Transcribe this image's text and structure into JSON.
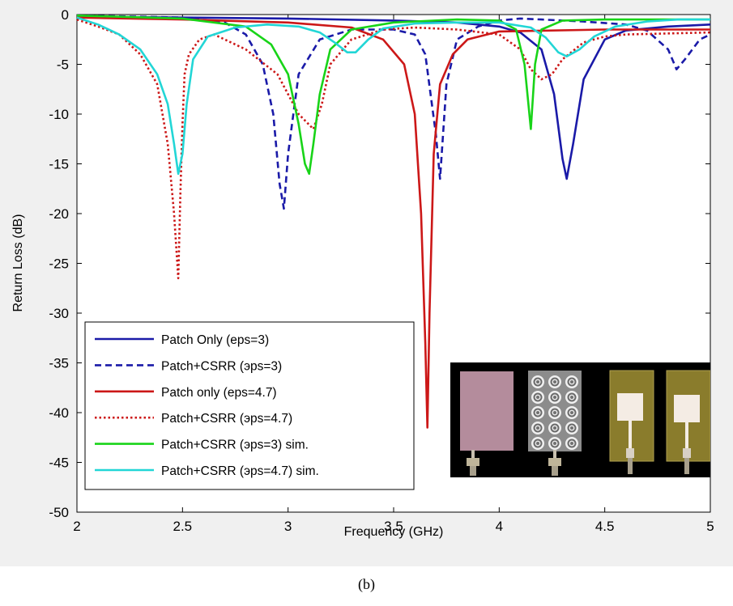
{
  "chart_data": {
    "type": "line",
    "title": "",
    "xlabel": "Frequency (GHz)",
    "ylabel": "Return Loss (dB)",
    "xlim": [
      2,
      5
    ],
    "ylim": [
      -50,
      0
    ],
    "xticks": [
      "2",
      "2.5",
      "3",
      "3.5",
      "4",
      "4.5",
      "5"
    ],
    "yticks": [
      "0",
      "-5",
      "-10",
      "-15",
      "-20",
      "-25",
      "-30",
      "-35",
      "-40",
      "-45",
      "-50"
    ],
    "grid": false,
    "legend_position": "bottom-left",
    "series": [
      {
        "name": "Patch Only (eps=3)",
        "color": "#1a1aa8",
        "style": "solid",
        "x": [
          2,
          2.5,
          3.0,
          3.5,
          3.8,
          4.0,
          4.1,
          4.2,
          4.26,
          4.3,
          4.32,
          4.35,
          4.4,
          4.5,
          4.6,
          4.8,
          5.0
        ],
        "y": [
          -0.2,
          -0.3,
          -0.4,
          -0.6,
          -0.8,
          -1.2,
          -1.8,
          -3.5,
          -8,
          -14.5,
          -16.5,
          -13,
          -6.5,
          -2.5,
          -1.6,
          -1.2,
          -1.0
        ]
      },
      {
        "name": "Patch+CSRR (eps=3)",
        "color": "#1a1aa8",
        "style": "dashed",
        "x": [
          2,
          2.5,
          2.7,
          2.8,
          2.88,
          2.93,
          2.96,
          2.98,
          3.0,
          3.05,
          3.15,
          3.3,
          3.5,
          3.6,
          3.65,
          3.7,
          3.72,
          3.75,
          3.8,
          3.9,
          4.0,
          4.1,
          4.2,
          4.4,
          4.6,
          4.7,
          4.8,
          4.84,
          4.88,
          4.95,
          5.0
        ],
        "y": [
          -0.1,
          -0.3,
          -0.8,
          -2,
          -5,
          -10,
          -17,
          -19.5,
          -14,
          -6,
          -2.5,
          -1.5,
          -1.5,
          -2,
          -4,
          -12,
          -16.5,
          -7,
          -2.5,
          -1.2,
          -0.6,
          -0.4,
          -0.5,
          -0.7,
          -1.0,
          -1.6,
          -3.5,
          -5.5,
          -4.5,
          -2.5,
          -2.0
        ]
      },
      {
        "name": "Patch only (eps=4.7)",
        "color": "#cc1818",
        "style": "solid",
        "x": [
          2,
          2.5,
          3.0,
          3.3,
          3.45,
          3.55,
          3.6,
          3.63,
          3.65,
          3.66,
          3.67,
          3.69,
          3.72,
          3.78,
          3.85,
          4.0,
          4.5,
          5.0
        ],
        "y": [
          -0.3,
          -0.5,
          -0.8,
          -1.3,
          -2.5,
          -5,
          -10,
          -20,
          -33,
          -41.5,
          -30,
          -14,
          -7,
          -4,
          -2.5,
          -1.7,
          -1.5,
          -1.5
        ]
      },
      {
        "name": "Patch+CSRR (eps=4.7)",
        "color": "#cc1818",
        "style": "dotted",
        "x": [
          2,
          2.1,
          2.2,
          2.3,
          2.38,
          2.43,
          2.46,
          2.48,
          2.49,
          2.5,
          2.51,
          2.53,
          2.58,
          2.65,
          2.8,
          2.95,
          3.05,
          3.12,
          3.16,
          3.2,
          3.3,
          3.45,
          3.6,
          3.8,
          4.0,
          4.1,
          4.15,
          4.2,
          4.25,
          4.3,
          4.4,
          4.5,
          4.6,
          5.0
        ],
        "y": [
          -0.5,
          -1.2,
          -2,
          -4,
          -7,
          -13,
          -20,
          -26.5,
          -18,
          -11,
          -6,
          -4,
          -2.5,
          -2.0,
          -3.5,
          -6,
          -10,
          -11.5,
          -9,
          -5,
          -2.5,
          -1.5,
          -1.3,
          -1.5,
          -2.0,
          -3.5,
          -5.5,
          -6.5,
          -6,
          -4.5,
          -2.8,
          -2.2,
          -2.0,
          -1.8
        ]
      },
      {
        "name": "Patch+CSRR (eps=3) sim.",
        "color": "#18d418",
        "style": "solid",
        "x": [
          2,
          2.5,
          2.8,
          2.92,
          3.0,
          3.05,
          3.08,
          3.1,
          3.12,
          3.15,
          3.2,
          3.3,
          3.5,
          3.8,
          4.0,
          4.08,
          4.12,
          4.15,
          4.17,
          4.2,
          4.3,
          4.5,
          5.0
        ],
        "y": [
          -0.1,
          -0.4,
          -1.2,
          -3,
          -6,
          -11,
          -15,
          -16,
          -13,
          -8,
          -3.5,
          -1.5,
          -0.8,
          -0.5,
          -0.6,
          -1.5,
          -5,
          -11.5,
          -5,
          -1.5,
          -0.6,
          -0.5,
          -0.5
        ]
      },
      {
        "name": "Patch+CSRR (eps=4.7) sim.",
        "color": "#22d6d6",
        "style": "solid",
        "x": [
          2,
          2.1,
          2.2,
          2.3,
          2.38,
          2.43,
          2.46,
          2.48,
          2.5,
          2.52,
          2.55,
          2.62,
          2.75,
          2.9,
          3.05,
          3.15,
          3.22,
          3.28,
          3.32,
          3.38,
          3.45,
          3.6,
          3.8,
          4.0,
          4.15,
          4.22,
          4.28,
          4.32,
          4.38,
          4.45,
          4.55,
          4.7,
          4.85,
          5.0
        ],
        "y": [
          -0.3,
          -1,
          -2,
          -3.5,
          -6,
          -9,
          -13,
          -16,
          -14,
          -9,
          -4.5,
          -2.2,
          -1.3,
          -1.0,
          -1.2,
          -1.8,
          -2.8,
          -3.8,
          -3.8,
          -2.5,
          -1.4,
          -0.9,
          -0.8,
          -0.8,
          -1.3,
          -2.3,
          -3.8,
          -4.2,
          -3.5,
          -2.2,
          -1.2,
          -0.7,
          -0.5,
          -0.5
        ]
      }
    ]
  },
  "legend": {
    "entries": [
      "Patch Only (eps=3)",
      "Patch+CSRR (эps=3)",
      "Patch only (eps=4.7)",
      "Patch+CSRR (эps=4.7)",
      "Patch+CSRR (эps=3) sim.",
      "Patch+CSRR (эps=4.7) sim."
    ]
  },
  "caption": "(b)",
  "inset_photo": {
    "panels": [
      "bare-patch",
      "csrr-ring-array",
      "patch-antenna-1",
      "patch-antenna-2"
    ],
    "colors": {
      "background": "#000000",
      "substrate_pink": "#b48c9c",
      "substrate_gray": "#8c8c8c",
      "substrate_fr4": "#8a7c2c",
      "copper_pad": "#f4ece4"
    }
  }
}
